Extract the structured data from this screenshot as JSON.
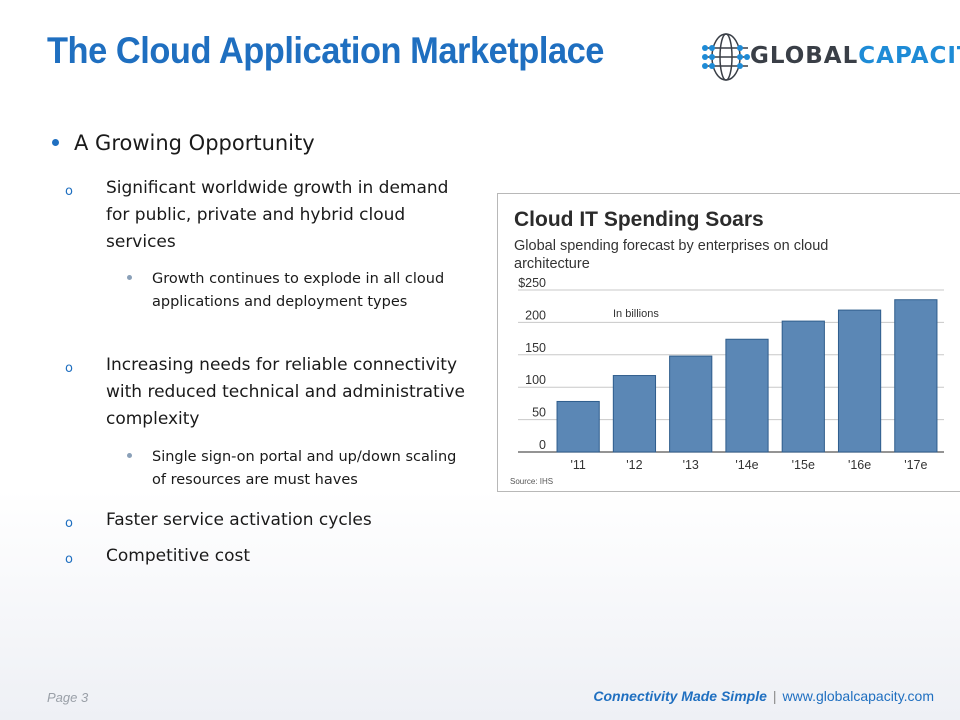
{
  "slide": {
    "title": "The Cloud Application Marketplace",
    "logo": {
      "part1": "GLOBAL",
      "part2": "CAPACITY"
    },
    "bullets": {
      "main": "A Growing Opportunity",
      "sub1": "Significant worldwide growth in demand for public, private and hybrid cloud services",
      "sub1_detail": "Growth continues to explode in all cloud applications and deployment types",
      "sub2": "Increasing needs for reliable connectivity with reduced technical and administrative complexity",
      "sub2_detail": "Single sign-on portal and up/down scaling of resources are must haves",
      "sub3": "Faster service activation cycles",
      "sub4": "Competitive cost"
    },
    "sub_marker": "o",
    "footer": {
      "page": "Page 3",
      "tagline": "Connectivity Made Simple",
      "separator": "|",
      "url": "www.globalcapacity.com"
    }
  },
  "chart_data": {
    "type": "bar",
    "title": "Cloud IT Spending Soars",
    "subtitle_lines": [
      "Global spending forecast by enterprises on cloud",
      "architecture"
    ],
    "annotation": "In billions",
    "source": "Source: IHS",
    "categories": [
      "'11",
      "'12",
      "'13",
      "'14e",
      "'15e",
      "'16e",
      "'17e"
    ],
    "values": [
      78,
      118,
      148,
      174,
      202,
      219,
      235
    ],
    "ylim": [
      0,
      250
    ],
    "yticks": [
      {
        "value": 0,
        "label": "0"
      },
      {
        "value": 50,
        "label": "50"
      },
      {
        "value": 100,
        "label": "100"
      },
      {
        "value": 150,
        "label": "150"
      },
      {
        "value": 200,
        "label": "200"
      },
      {
        "value": 250,
        "label": "$250"
      }
    ],
    "grid": true,
    "bar_color": "#5b87b5",
    "bar_edge_color": "#2f5d8c"
  }
}
